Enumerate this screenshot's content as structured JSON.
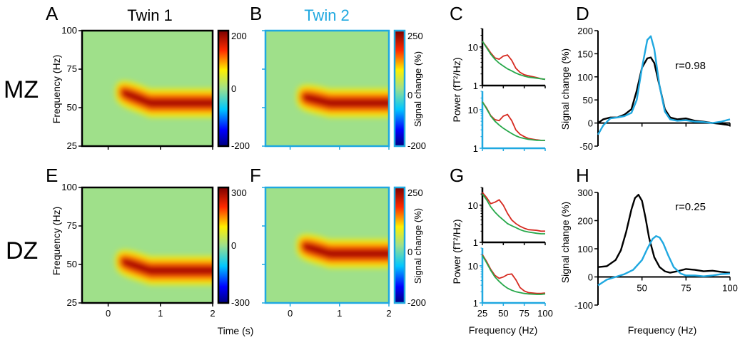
{
  "figure": {
    "row_labels": [
      "MZ",
      "DZ"
    ],
    "panel_letters": [
      "A",
      "B",
      "C",
      "D",
      "E",
      "F",
      "G",
      "H"
    ],
    "twin1_title": "Twin 1",
    "twin2_title": "Twin 2",
    "time_axis_label": "Time (s)",
    "freq_axis_label": "Frequency (Hz)",
    "power_axis_label": "Power (fT²/Hz)",
    "signal_axis_label": "Signal change (%)",
    "colorbar_label": "Signal change (%)"
  },
  "colors": {
    "twin1": "#000000",
    "twin2": "#1fa8e0",
    "peak_series": "#d62a20",
    "baseline_series": "#27a84a",
    "spectrogram_background": "#9fe08a"
  },
  "chart_data": [
    {
      "id": "A",
      "type": "heatmap",
      "title": "Twin 1",
      "xlabel": "",
      "ylabel": "Frequency (Hz)",
      "xlim": [
        -0.5,
        2
      ],
      "ylim": [
        25,
        100
      ],
      "y_ticks": [
        25,
        50,
        75,
        100
      ],
      "colorbar": {
        "ticks": [
          200,
          0,
          -200
        ],
        "range": [
          -200,
          200
        ],
        "label": ""
      },
      "ridge": {
        "onset_s": 0.3,
        "freq_start_hz": 60,
        "freq_end_hz": 53,
        "peak_value_pct": 150
      },
      "frame_color": "#000000"
    },
    {
      "id": "B",
      "type": "heatmap",
      "title": "Twin 2",
      "xlabel": "",
      "ylabel": "",
      "xlim": [
        -0.5,
        2
      ],
      "ylim": [
        25,
        100
      ],
      "colorbar": {
        "ticks": [
          250,
          0,
          -200
        ],
        "range": [
          -200,
          250
        ],
        "label": "Signal change (%)"
      },
      "ridge": {
        "onset_s": 0.3,
        "freq_start_hz": 57,
        "freq_end_hz": 53,
        "peak_value_pct": 190
      },
      "frame_color": "#1fa8e0"
    },
    {
      "id": "C",
      "type": "line",
      "ylabel": "Power (fT²/Hz)",
      "xlim": [
        25,
        100
      ],
      "y_scale": "log",
      "subplots": [
        {
          "frame_color": "#000000",
          "ylim": [
            1,
            30
          ],
          "y_ticks": [
            1,
            10
          ],
          "series": [
            {
              "color": "#d62a20",
              "x": [
                25,
                30,
                35,
                40,
                45,
                50,
                55,
                60,
                65,
                70,
                75,
                80,
                90,
                95,
                100
              ],
              "y": [
                14,
                10,
                7,
                5.2,
                4.8,
                5.8,
                6.2,
                4.5,
                2.8,
                2.2,
                1.9,
                1.8,
                1.6,
                1.5,
                1.45
              ]
            },
            {
              "color": "#27a84a",
              "x": [
                25,
                30,
                35,
                40,
                45,
                50,
                55,
                60,
                65,
                70,
                75,
                80,
                90,
                95,
                100
              ],
              "y": [
                14,
                9.5,
                6.5,
                4.8,
                3.8,
                3.2,
                2.7,
                2.4,
                2.1,
                1.9,
                1.75,
                1.65,
                1.55,
                1.5,
                1.45
              ]
            }
          ]
        },
        {
          "frame_color": "#1fa8e0",
          "ylim": [
            1,
            30
          ],
          "y_ticks": [
            1,
            10
          ],
          "series": [
            {
              "color": "#d62a20",
              "x": [
                25,
                30,
                35,
                40,
                45,
                50,
                55,
                60,
                65,
                70,
                75,
                80,
                90,
                95,
                100
              ],
              "y": [
                16,
                11,
                7,
                5.5,
                5.2,
                6.8,
                7.5,
                5.2,
                3,
                2.3,
                2,
                1.8,
                1.65,
                1.6,
                1.6
              ]
            },
            {
              "color": "#27a84a",
              "x": [
                25,
                30,
                35,
                40,
                45,
                50,
                55,
                60,
                65,
                70,
                75,
                80,
                90,
                95,
                100
              ],
              "y": [
                16,
                10.5,
                6.8,
                5,
                4,
                3.3,
                2.8,
                2.4,
                2.1,
                1.9,
                1.8,
                1.7,
                1.6,
                1.6,
                1.6
              ]
            }
          ]
        }
      ]
    },
    {
      "id": "D",
      "type": "line",
      "xlabel": "",
      "ylabel": "Signal change (%)",
      "xlim": [
        25,
        100
      ],
      "ylim": [
        -50,
        200
      ],
      "y_ticks": [
        -50,
        0,
        50,
        100,
        150,
        200
      ],
      "annotation": "r=0.98",
      "series": [
        {
          "color": "#000000",
          "x": [
            25,
            28,
            32,
            36,
            40,
            44,
            47,
            50,
            53,
            55,
            57,
            60,
            63,
            66,
            70,
            75,
            80,
            85,
            90,
            95,
            100
          ],
          "y": [
            0,
            8,
            12,
            12,
            18,
            30,
            70,
            120,
            140,
            142,
            130,
            80,
            30,
            12,
            8,
            10,
            5,
            3,
            0,
            -2,
            -5
          ]
        },
        {
          "color": "#1fa8e0",
          "x": [
            25,
            28,
            32,
            36,
            40,
            44,
            47,
            50,
            53,
            55,
            57,
            60,
            63,
            66,
            70,
            75,
            80,
            85,
            90,
            95,
            100
          ],
          "y": [
            -25,
            -5,
            10,
            12,
            15,
            22,
            50,
            120,
            180,
            188,
            160,
            80,
            25,
            8,
            5,
            6,
            3,
            2,
            0,
            3,
            8
          ]
        }
      ]
    },
    {
      "id": "E",
      "type": "heatmap",
      "title": "",
      "xlabel": "",
      "ylabel": "Frequency (Hz)",
      "xlim": [
        -0.5,
        2
      ],
      "ylim": [
        25,
        100
      ],
      "x_ticks": [
        0,
        1,
        2
      ],
      "y_ticks": [
        25,
        50,
        75,
        100
      ],
      "colorbar": {
        "ticks": [
          300,
          0,
          -300
        ],
        "range": [
          -300,
          300
        ],
        "label": ""
      },
      "ridge": {
        "onset_s": 0.3,
        "freq_start_hz": 52,
        "freq_end_hz": 46,
        "peak_value_pct": 200
      },
      "frame_color": "#000000"
    },
    {
      "id": "F",
      "type": "heatmap",
      "title": "",
      "xlabel": "Time (s)",
      "ylabel": "",
      "xlim": [
        -0.5,
        2
      ],
      "ylim": [
        25,
        100
      ],
      "x_ticks": [
        0,
        1,
        2
      ],
      "colorbar": {
        "ticks": [
          250,
          0,
          -200
        ],
        "range": [
          -200,
          250
        ],
        "label": "Signal change (%)"
      },
      "ridge": {
        "onset_s": 0.3,
        "freq_start_hz": 62,
        "freq_end_hz": 57,
        "peak_value_pct": 190
      },
      "frame_color": "#1fa8e0"
    },
    {
      "id": "G",
      "type": "line",
      "xlabel": "Frequency (Hz)",
      "ylabel": "Power (fT²/Hz)",
      "xlim": [
        25,
        100
      ],
      "y_scale": "log",
      "x_ticks": [
        25,
        50,
        75,
        100
      ],
      "subplots": [
        {
          "frame_color": "#000000",
          "ylim": [
            1,
            30
          ],
          "y_ticks": [
            1,
            10
          ],
          "series": [
            {
              "color": "#d62a20",
              "x": [
                25,
                30,
                35,
                40,
                45,
                50,
                55,
                60,
                65,
                70,
                75,
                80,
                90,
                95,
                100
              ],
              "y": [
                22,
                16,
                11,
                12,
                14,
                10,
                6,
                4,
                3.2,
                2.7,
                2.4,
                2.2,
                2.1,
                2,
                2
              ]
            },
            {
              "color": "#27a84a",
              "x": [
                25,
                30,
                35,
                40,
                45,
                50,
                55,
                60,
                65,
                70,
                75,
                80,
                90,
                95,
                100
              ],
              "y": [
                20,
                14,
                9,
                6.5,
                5,
                4,
                3.2,
                2.8,
                2.5,
                2.2,
                2,
                1.9,
                1.75,
                1.7,
                1.7
              ]
            }
          ]
        },
        {
          "frame_color": "#1fa8e0",
          "ylim": [
            1,
            30
          ],
          "y_ticks": [
            1,
            10
          ],
          "series": [
            {
              "color": "#d62a20",
              "x": [
                25,
                30,
                35,
                40,
                45,
                50,
                55,
                60,
                65,
                70,
                75,
                80,
                90,
                95,
                100
              ],
              "y": [
                20,
                13,
                8,
                5.5,
                4.6,
                5,
                5.8,
                6,
                4.2,
                2.6,
                2.1,
                1.9,
                1.8,
                1.8,
                1.85
              ]
            },
            {
              "color": "#27a84a",
              "x": [
                25,
                30,
                35,
                40,
                45,
                50,
                55,
                60,
                65,
                70,
                75,
                80,
                90,
                95,
                100
              ],
              "y": [
                19,
                12,
                7.5,
                5,
                3.8,
                3,
                2.5,
                2.2,
                2,
                1.9,
                1.8,
                1.75,
                1.7,
                1.7,
                1.75
              ]
            }
          ]
        }
      ]
    },
    {
      "id": "H",
      "type": "line",
      "xlabel": "Frequency (Hz)",
      "ylabel": "Signal change (%)",
      "xlim": [
        25,
        100
      ],
      "ylim": [
        -100,
        300
      ],
      "x_ticks": [
        50,
        75,
        100
      ],
      "y_ticks": [
        -100,
        0,
        100,
        200,
        300
      ],
      "annotation": "r=0.25",
      "series": [
        {
          "color": "#000000",
          "x": [
            25,
            30,
            35,
            38,
            41,
            44,
            46,
            48,
            50,
            52,
            54,
            57,
            60,
            63,
            66,
            70,
            75,
            80,
            85,
            90,
            95,
            100
          ],
          "y": [
            35,
            38,
            60,
            95,
            160,
            240,
            280,
            292,
            270,
            210,
            140,
            70,
            35,
            20,
            15,
            20,
            28,
            25,
            20,
            22,
            18,
            15
          ]
        },
        {
          "color": "#1fa8e0",
          "x": [
            25,
            30,
            35,
            40,
            45,
            50,
            53,
            56,
            58,
            60,
            62,
            65,
            68,
            72,
            75,
            80,
            85,
            90,
            95,
            100
          ],
          "y": [
            -30,
            -10,
            0,
            10,
            25,
            60,
            100,
            135,
            145,
            140,
            120,
            75,
            35,
            12,
            5,
            5,
            2,
            5,
            10,
            12
          ]
        }
      ]
    }
  ]
}
